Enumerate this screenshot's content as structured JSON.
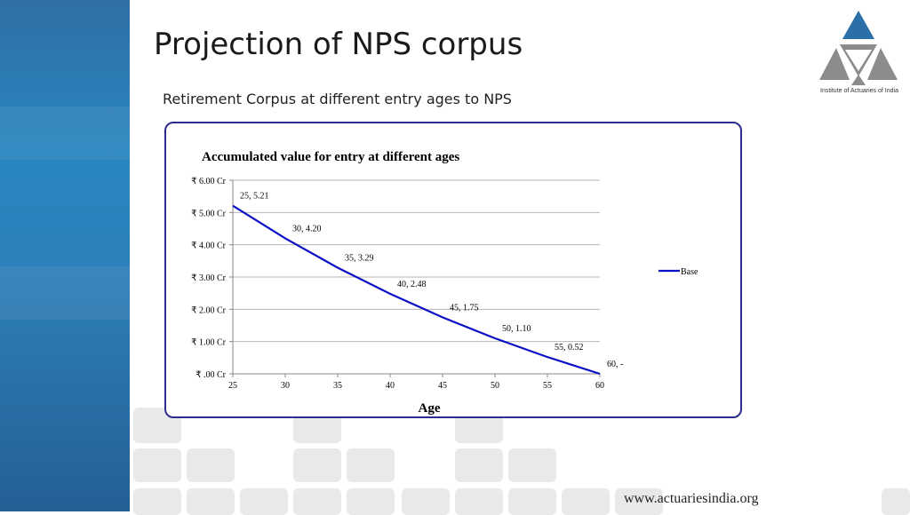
{
  "slide": {
    "title": "Projection of NPS corpus",
    "subtitle": "Retirement Corpus at different entry ages to NPS",
    "logo_text": "Institute of Actuaries of India",
    "footer_url": "www.actuariesindia.org"
  },
  "colors": {
    "line": "#0c10c4",
    "border": "#2b2f8c",
    "accent_blue": "#2a86c0",
    "logo_blue": "#2a6fa8",
    "logo_gray": "#8c8c8c"
  },
  "chart_data": {
    "type": "line",
    "title": "Accumulated value for entry at different ages",
    "xlabel": "Age",
    "ylabel": "",
    "xlim": [
      25,
      60
    ],
    "ylim": [
      0,
      6
    ],
    "x_ticks": [
      "25",
      "30",
      "35",
      "40",
      "45",
      "50",
      "55",
      "60"
    ],
    "y_ticks": [
      "₹ .00 Cr",
      "₹ 1.00 Cr",
      "₹ 2.00 Cr",
      "₹ 3.00 Cr",
      "₹ 4.00 Cr",
      "₹ 5.00 Cr",
      "₹ 6.00 Cr"
    ],
    "grid": true,
    "legend_position": "right",
    "series": [
      {
        "name": "Base",
        "x": [
          25,
          30,
          35,
          40,
          45,
          50,
          55,
          60
        ],
        "values": [
          5.21,
          4.2,
          3.29,
          2.48,
          1.75,
          1.1,
          0.52,
          0
        ],
        "labels": [
          "25,  5.21",
          "30,  4.20",
          "35,  3.29",
          "40,  2.48",
          "45,  1.75",
          "50,  1.10",
          "55,  0.52",
          "60,  -"
        ]
      }
    ]
  }
}
